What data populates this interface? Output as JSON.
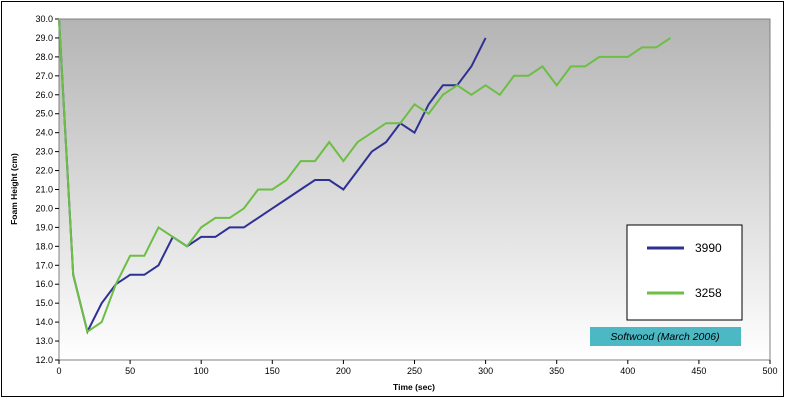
{
  "chart_data": {
    "type": "line",
    "title": "",
    "xlabel": "Time (sec)",
    "ylabel": "Foam Height (cm)",
    "xlim": [
      0,
      500
    ],
    "ylim": [
      12.0,
      30.0
    ],
    "x_ticks": [
      0,
      50,
      100,
      150,
      200,
      250,
      300,
      350,
      400,
      450,
      500
    ],
    "y_ticks": [
      "12.0",
      "13.0",
      "14.0",
      "15.0",
      "16.0",
      "17.0",
      "18.0",
      "19.0",
      "20.0",
      "21.0",
      "22.0",
      "23.0",
      "24.0",
      "25.0",
      "26.0",
      "27.0",
      "28.0",
      "29.0",
      "30.0"
    ],
    "grid": false,
    "legend_position": "right",
    "annotation": "Softwood (March 2006)",
    "series": [
      {
        "name": "3990",
        "color": "#2E3192",
        "x": [
          0,
          10,
          20,
          30,
          40,
          50,
          60,
          70,
          80,
          90,
          100,
          110,
          120,
          130,
          140,
          150,
          160,
          170,
          180,
          190,
          200,
          210,
          220,
          230,
          240,
          250,
          260,
          270,
          280,
          290,
          300
        ],
        "y": [
          30.0,
          16.5,
          13.5,
          15.0,
          16.0,
          16.5,
          16.5,
          17.0,
          18.5,
          18.0,
          18.5,
          18.5,
          19.0,
          19.0,
          19.5,
          20.0,
          20.5,
          21.0,
          21.5,
          21.5,
          21.0,
          22.0,
          23.0,
          23.5,
          24.5,
          24.0,
          25.5,
          26.5,
          26.5,
          27.5,
          29.0
        ]
      },
      {
        "name": "3258",
        "color": "#6DBE45",
        "x": [
          0,
          10,
          20,
          30,
          40,
          50,
          60,
          70,
          80,
          90,
          100,
          110,
          120,
          130,
          140,
          150,
          160,
          170,
          180,
          190,
          200,
          210,
          220,
          230,
          240,
          250,
          260,
          270,
          280,
          290,
          300,
          310,
          320,
          330,
          340,
          350,
          360,
          370,
          380,
          390,
          400,
          410,
          420,
          430
        ],
        "y": [
          30.0,
          16.5,
          13.5,
          14.0,
          16.0,
          17.5,
          17.5,
          19.0,
          18.5,
          18.0,
          19.0,
          19.5,
          19.5,
          20.0,
          21.0,
          21.0,
          21.5,
          22.5,
          22.5,
          23.5,
          22.5,
          23.5,
          24.0,
          24.5,
          24.5,
          25.5,
          25.0,
          26.0,
          26.5,
          26.0,
          26.5,
          26.0,
          27.0,
          27.0,
          27.5,
          26.5,
          27.5,
          27.5,
          28.0,
          28.0,
          28.0,
          28.5,
          28.5,
          29.0
        ]
      }
    ]
  }
}
